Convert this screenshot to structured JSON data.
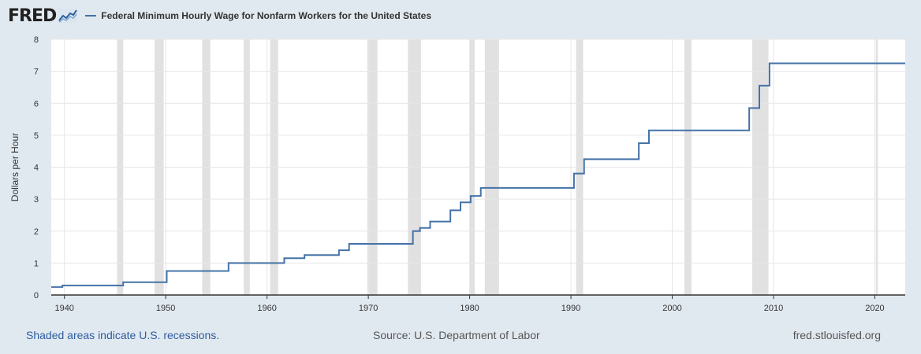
{
  "header": {
    "logo_text": "FRED",
    "logo_icon": "trend-chart-icon"
  },
  "colors": {
    "background": "#e1e9f0",
    "plot_background": "#ffffff",
    "series": "#4572a7",
    "recession": "#e1e1e1",
    "gridline": "#e6e6e6",
    "link": "#2d5c9e"
  },
  "chart_data": {
    "type": "line",
    "step": true,
    "title": "",
    "xlabel": "",
    "ylabel": "Dollars per Hour",
    "xlim": [
      1938.7,
      2023.0
    ],
    "ylim": [
      0,
      8
    ],
    "x_ticks": [
      "1940",
      "1950",
      "1960",
      "1970",
      "1980",
      "1990",
      "2000",
      "2010",
      "2020"
    ],
    "y_ticks": [
      "0",
      "1",
      "2",
      "3",
      "4",
      "5",
      "6",
      "7",
      "8"
    ],
    "grid": true,
    "legend_position": "top-left",
    "series": [
      {
        "name": "Federal Minimum Hourly Wage for Nonfarm Workers for the United States",
        "points": [
          [
            1938.7,
            0.25
          ],
          [
            1939.8,
            0.3
          ],
          [
            1945.8,
            0.4
          ],
          [
            1950.1,
            0.75
          ],
          [
            1956.2,
            1.0
          ],
          [
            1961.7,
            1.15
          ],
          [
            1963.7,
            1.25
          ],
          [
            1967.1,
            1.4
          ],
          [
            1968.1,
            1.6
          ],
          [
            1974.4,
            2.0
          ],
          [
            1975.1,
            2.1
          ],
          [
            1976.1,
            2.3
          ],
          [
            1978.1,
            2.65
          ],
          [
            1979.1,
            2.9
          ],
          [
            1980.1,
            3.1
          ],
          [
            1981.1,
            3.35
          ],
          [
            1990.3,
            3.8
          ],
          [
            1991.3,
            4.25
          ],
          [
            1996.7,
            4.75
          ],
          [
            1997.7,
            5.15
          ],
          [
            2007.6,
            5.85
          ],
          [
            2008.6,
            6.55
          ],
          [
            2009.6,
            7.25
          ],
          [
            2023.0,
            7.25
          ]
        ]
      }
    ],
    "recessions": [
      [
        1945.2,
        1945.8
      ],
      [
        1948.9,
        1949.8
      ],
      [
        1953.6,
        1954.4
      ],
      [
        1957.7,
        1958.3
      ],
      [
        1960.3,
        1961.1
      ],
      [
        1969.9,
        1970.9
      ],
      [
        1973.9,
        1975.2
      ],
      [
        1980.0,
        1980.5
      ],
      [
        1981.5,
        1982.9
      ],
      [
        1990.5,
        1991.2
      ],
      [
        2001.2,
        2001.9
      ],
      [
        2007.9,
        2009.5
      ],
      [
        2020.1,
        2020.3
      ]
    ]
  },
  "footer": {
    "note": "Shaded areas indicate U.S. recessions.",
    "source": "Source: U.S. Department of Labor",
    "url": "fred.stlouisfed.org"
  }
}
